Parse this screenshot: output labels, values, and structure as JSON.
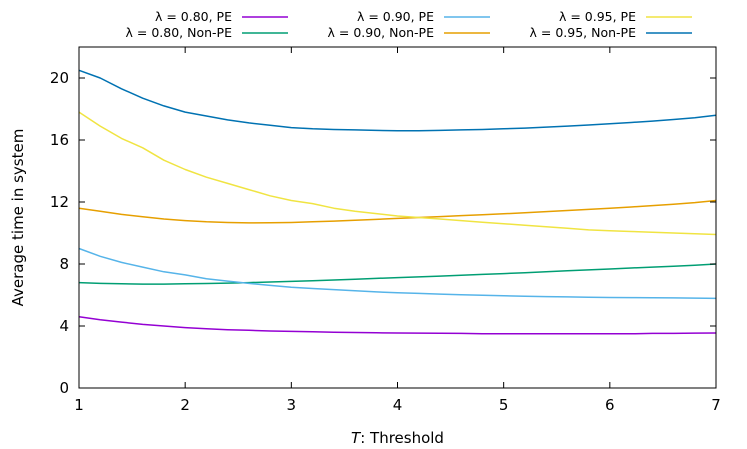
{
  "chart_data": {
    "type": "line",
    "xlabel_var": "T",
    "xlabel_rest": ": Threshold",
    "ylabel": "Average time in system",
    "xlim": [
      1,
      7
    ],
    "ylim": [
      0,
      22
    ],
    "xticks": [
      1,
      2,
      3,
      4,
      5,
      6,
      7
    ],
    "yticks": [
      0,
      4,
      8,
      12,
      16,
      20
    ],
    "grid": false,
    "legend_position": "top",
    "x": [
      1.0,
      1.2,
      1.4,
      1.6,
      1.8,
      2.0,
      2.2,
      2.4,
      2.6,
      2.8,
      3.0,
      3.2,
      3.4,
      3.6,
      3.8,
      4.0,
      4.2,
      4.4,
      4.6,
      4.8,
      5.0,
      5.2,
      5.4,
      5.6,
      5.8,
      6.0,
      6.2,
      6.4,
      6.6,
      6.8,
      7.0
    ],
    "series": [
      {
        "name": "λ = 0.80, PE",
        "color": "#9400d3",
        "values": [
          4.6,
          4.4,
          4.25,
          4.1,
          4.0,
          3.9,
          3.82,
          3.76,
          3.72,
          3.68,
          3.65,
          3.63,
          3.6,
          3.58,
          3.56,
          3.55,
          3.54,
          3.53,
          3.52,
          3.5,
          3.5,
          3.5,
          3.5,
          3.5,
          3.5,
          3.5,
          3.5,
          3.52,
          3.52,
          3.54,
          3.55
        ]
      },
      {
        "name": "λ = 0.80, Non-PE",
        "color": "#009e73",
        "values": [
          6.8,
          6.75,
          6.72,
          6.7,
          6.7,
          6.72,
          6.74,
          6.77,
          6.8,
          6.84,
          6.88,
          6.92,
          6.97,
          7.02,
          7.07,
          7.12,
          7.17,
          7.22,
          7.27,
          7.33,
          7.38,
          7.44,
          7.5,
          7.56,
          7.62,
          7.68,
          7.74,
          7.8,
          7.86,
          7.92,
          8.0
        ]
      },
      {
        "name": "λ = 0.90, PE",
        "color": "#56b4e9",
        "values": [
          9.0,
          8.5,
          8.1,
          7.8,
          7.5,
          7.3,
          7.05,
          6.9,
          6.75,
          6.62,
          6.5,
          6.42,
          6.35,
          6.27,
          6.2,
          6.15,
          6.1,
          6.06,
          6.02,
          5.98,
          5.95,
          5.92,
          5.9,
          5.88,
          5.86,
          5.84,
          5.83,
          5.82,
          5.81,
          5.8,
          5.78
        ]
      },
      {
        "name": "λ = 0.90, Non-PE",
        "color": "#e69f00",
        "values": [
          11.6,
          11.4,
          11.2,
          11.05,
          10.9,
          10.8,
          10.72,
          10.68,
          10.65,
          10.66,
          10.68,
          10.72,
          10.77,
          10.82,
          10.88,
          10.94,
          11.0,
          11.06,
          11.12,
          11.18,
          11.24,
          11.31,
          11.38,
          11.45,
          11.52,
          11.6,
          11.68,
          11.77,
          11.86,
          11.96,
          12.1
        ]
      },
      {
        "name": "λ = 0.95, PE",
        "color": "#f0e442",
        "values": [
          17.8,
          16.9,
          16.1,
          15.5,
          14.7,
          14.1,
          13.6,
          13.2,
          12.8,
          12.4,
          12.1,
          11.9,
          11.6,
          11.4,
          11.25,
          11.1,
          11.0,
          10.9,
          10.8,
          10.7,
          10.6,
          10.5,
          10.4,
          10.3,
          10.2,
          10.15,
          10.1,
          10.05,
          10.0,
          9.95,
          9.9
        ]
      },
      {
        "name": "λ = 0.95, Non-PE",
        "color": "#0072b2",
        "values": [
          20.5,
          20.0,
          19.3,
          18.7,
          18.2,
          17.8,
          17.55,
          17.3,
          17.1,
          16.95,
          16.8,
          16.72,
          16.68,
          16.65,
          16.62,
          16.6,
          16.6,
          16.62,
          16.65,
          16.68,
          16.72,
          16.77,
          16.83,
          16.9,
          16.97,
          17.05,
          17.13,
          17.22,
          17.32,
          17.43,
          17.6
        ]
      }
    ]
  }
}
